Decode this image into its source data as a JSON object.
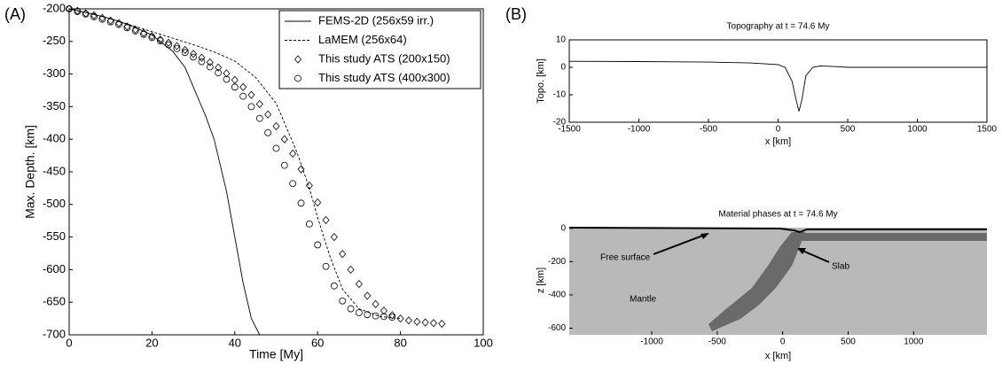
{
  "chart_data": [
    {
      "type": "line",
      "panel_label": "(A)",
      "xlabel": "Time [My]",
      "ylabel": "Max. Depth. [km]",
      "xlim": [
        0,
        100
      ],
      "ylim": [
        -700,
        -200
      ],
      "xticks": [
        0,
        20,
        40,
        60,
        80,
        100
      ],
      "yticks": [
        -200,
        -250,
        -300,
        -350,
        -400,
        -450,
        -500,
        -550,
        -600,
        -650,
        -700
      ],
      "legend": "upper right",
      "color": "#000000",
      "series": [
        {
          "name": "FEMS-2D (256x59 irr.)",
          "style": "solid",
          "x": [
            0,
            5,
            10,
            15,
            20,
            25,
            28,
            30,
            33,
            35,
            38,
            40,
            42,
            44,
            46
          ],
          "values": [
            -200,
            -207,
            -215,
            -226,
            -240,
            -265,
            -290,
            -320,
            -365,
            -400,
            -480,
            -550,
            -620,
            -675,
            -700
          ]
        },
        {
          "name": "LaMEM (256x64)",
          "style": "dashed",
          "x": [
            0,
            5,
            10,
            15,
            20,
            25,
            30,
            35,
            40,
            45,
            50,
            55,
            58,
            60,
            63,
            66,
            70,
            75,
            80
          ],
          "values": [
            -200,
            -207,
            -215,
            -225,
            -235,
            -245,
            -255,
            -266,
            -280,
            -305,
            -345,
            -420,
            -475,
            -520,
            -580,
            -630,
            -660,
            -672,
            -675
          ]
        },
        {
          "name": "This study ATS (200x150)",
          "style": "diamond",
          "x": [
            0,
            2,
            4,
            6,
            8,
            10,
            12,
            14,
            16,
            18,
            20,
            22,
            24,
            26,
            28,
            30,
            32,
            34,
            36,
            38,
            40,
            42,
            44,
            46,
            48,
            50,
            52,
            54,
            56,
            58,
            60,
            62,
            64,
            66,
            68,
            70,
            72,
            74,
            76,
            78,
            80,
            82,
            84,
            86,
            88,
            90
          ],
          "values": [
            -200,
            -203,
            -207,
            -210,
            -214,
            -218,
            -222,
            -227,
            -232,
            -237,
            -242,
            -247,
            -252,
            -257,
            -263,
            -269,
            -275,
            -282,
            -290,
            -299,
            -309,
            -320,
            -332,
            -346,
            -362,
            -380,
            -400,
            -422,
            -446,
            -471,
            -497,
            -524,
            -550,
            -576,
            -600,
            -622,
            -640,
            -653,
            -663,
            -670,
            -675,
            -678,
            -680,
            -681,
            -682,
            -683
          ]
        },
        {
          "name": "This study ATS (400x300)",
          "style": "circle",
          "x": [
            0,
            2,
            4,
            6,
            8,
            10,
            12,
            14,
            16,
            18,
            20,
            22,
            24,
            26,
            28,
            30,
            32,
            34,
            36,
            38,
            40,
            42,
            44,
            46,
            48,
            50,
            52,
            54,
            56,
            58,
            60,
            62,
            64,
            66,
            68,
            70,
            72,
            74,
            76,
            78
          ],
          "values": [
            -200,
            -204,
            -208,
            -212,
            -216,
            -220,
            -224,
            -229,
            -234,
            -239,
            -244,
            -249,
            -255,
            -261,
            -267,
            -274,
            -281,
            -289,
            -298,
            -308,
            -320,
            -334,
            -350,
            -368,
            -390,
            -414,
            -440,
            -468,
            -498,
            -530,
            -562,
            -595,
            -625,
            -648,
            -660,
            -666,
            -669,
            -671,
            -672,
            -673
          ]
        }
      ]
    },
    {
      "type": "line",
      "panel_label": "(B)",
      "title": "Topography at t = 74.6 My",
      "xlabel": "x [km]",
      "ylabel": "Topo. [km]",
      "xlim": [
        -1500,
        1500
      ],
      "ylim": [
        -20,
        10
      ],
      "xticks": [
        -1500,
        -1000,
        -500,
        0,
        500,
        1000,
        1500
      ],
      "yticks": [
        10,
        0,
        -10,
        -20
      ],
      "color": "#000000",
      "series": [
        {
          "style": "solid",
          "x": [
            -1500,
            -1000,
            -500,
            -200,
            0,
            50,
            100,
            130,
            150,
            170,
            200,
            250,
            300,
            400,
            500,
            1000,
            1500
          ],
          "values": [
            2.2,
            2.1,
            1.9,
            1.6,
            1.0,
            0,
            -5,
            -12,
            -16,
            -12,
            -3,
            0,
            0.5,
            0.3,
            0,
            0,
            0
          ]
        }
      ]
    },
    {
      "type": "phase-map",
      "title": "Material phases at t = 74.6 My",
      "xlabel": "x [km]",
      "ylabel": "z [km]",
      "xlim": [
        -1630,
        1560
      ],
      "ylim": [
        -640,
        15
      ],
      "xticks": [
        -1000,
        -500,
        0,
        500,
        1000
      ],
      "yticks": [
        0,
        -200,
        -400,
        -600
      ],
      "annotations": [
        {
          "text": "Free surface"
        },
        {
          "text": "Slab"
        },
        {
          "text": "Mantle"
        }
      ]
    }
  ]
}
